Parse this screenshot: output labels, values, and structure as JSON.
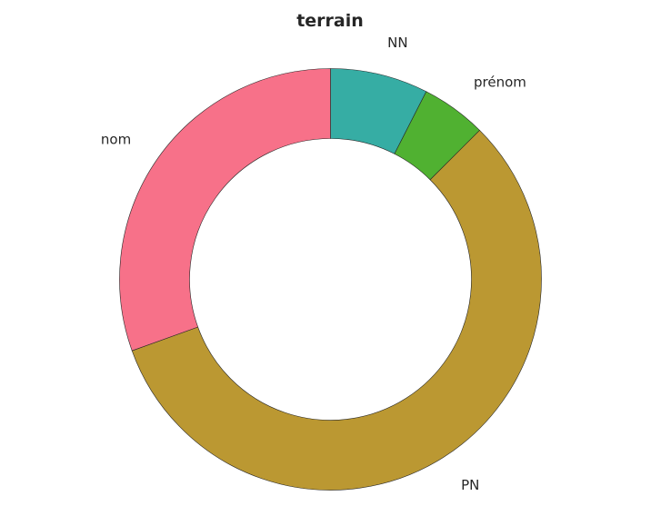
{
  "chart_data": {
    "type": "pie",
    "variant": "donut",
    "title": "terrain",
    "categories": [
      "NN",
      "prénom",
      "PN",
      "nom"
    ],
    "values": [
      7.5,
      5.0,
      57.0,
      30.5
    ],
    "colors": [
      "#36ada4",
      "#50b131",
      "#bb9832",
      "#f77189"
    ],
    "start_angle": "12 o'clock",
    "direction": "clockwise",
    "legend": "none"
  }
}
